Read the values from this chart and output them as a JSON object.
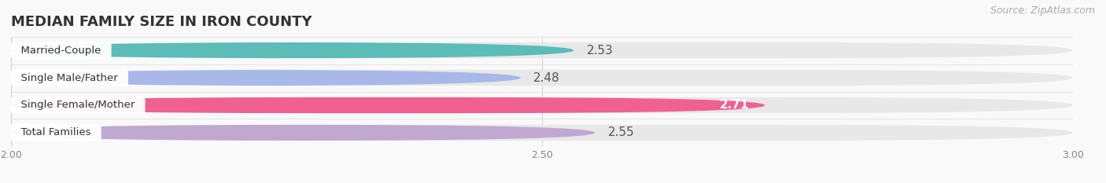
{
  "title": "MEDIAN FAMILY SIZE IN IRON COUNTY",
  "source": "Source: ZipAtlas.com",
  "categories": [
    "Married-Couple",
    "Single Male/Father",
    "Single Female/Mother",
    "Total Families"
  ],
  "values": [
    2.53,
    2.48,
    2.71,
    2.55
  ],
  "bar_colors": [
    "#5BBCB8",
    "#A8B8E8",
    "#F06090",
    "#C0A8D0"
  ],
  "bar_bg_color": "#E8E8E8",
  "xlim": [
    2.0,
    3.0
  ],
  "xticks": [
    2.0,
    2.5,
    3.0
  ],
  "xtick_labels": [
    "2.00",
    "2.50",
    "3.00"
  ],
  "background_color": "#f9f9f9",
  "title_fontsize": 13,
  "bar_label_fontsize": 11,
  "category_fontsize": 9.5,
  "source_fontsize": 9,
  "bar_height": 0.58,
  "value_inside": [
    false,
    false,
    true,
    false
  ],
  "value_label_colors_outside": "#555555",
  "value_label_color_inside": "#ffffff"
}
